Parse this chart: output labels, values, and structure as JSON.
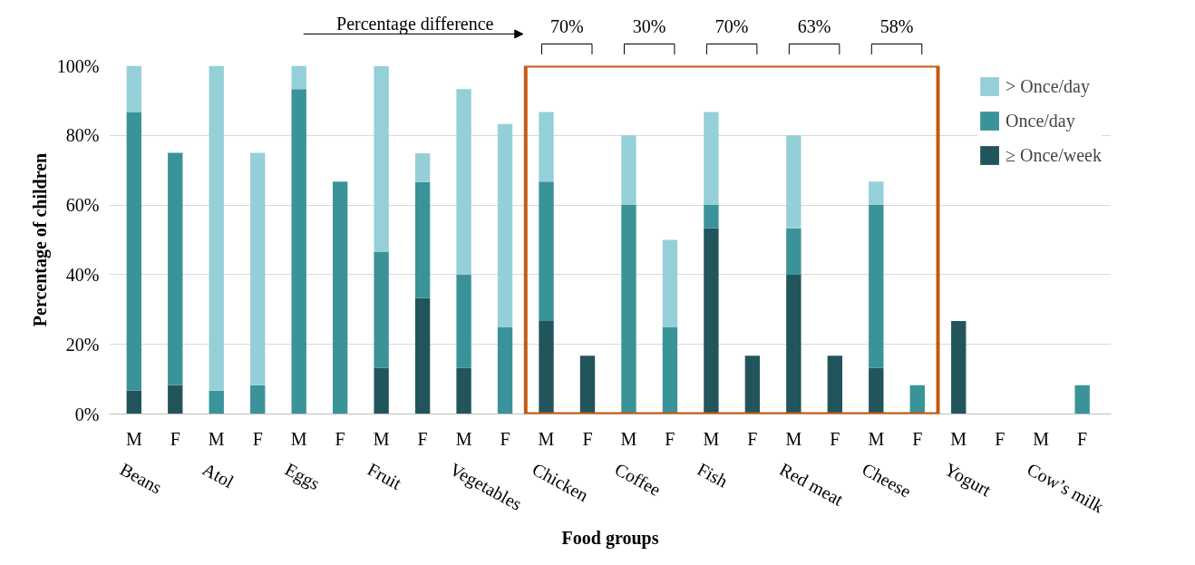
{
  "chart_data": {
    "type": "bar",
    "stacked": true,
    "xlabel": "Food groups",
    "ylabel": "Percentage of children",
    "categories": [
      "M",
      "F",
      "M",
      "F",
      "M",
      "F",
      "M",
      "F",
      "M",
      "F",
      "M",
      "F",
      "M",
      "F",
      "M",
      "F",
      "M",
      "F",
      "M",
      "F",
      "M",
      "F",
      "M",
      "F"
    ],
    "series": [
      {
        "name": "≥ Once/week",
        "color": "#22555b",
        "values": [
          6.7,
          8.3,
          0,
          0,
          0,
          0,
          13.3,
          33.3,
          13.3,
          0,
          26.7,
          16.7,
          0,
          0,
          53.3,
          16.7,
          40,
          16.7,
          13.3,
          0,
          26.7,
          0,
          0,
          0
        ]
      },
      {
        "name": "Once/day",
        "color": "#3a9399",
        "values": [
          80,
          66.7,
          6.7,
          8.3,
          93.3,
          66.7,
          33.3,
          33.3,
          26.7,
          25,
          40,
          0,
          60,
          25,
          6.7,
          0,
          13.3,
          0,
          46.7,
          8.3,
          0,
          0,
          0,
          8.3
        ]
      },
      {
        "name": "> Once/day",
        "color": "#95d0d8",
        "values": [
          13.3,
          0,
          93.3,
          66.7,
          6.7,
          0,
          53.3,
          8.3,
          53.3,
          58.3,
          20,
          0,
          20,
          25,
          26.7,
          0,
          26.7,
          0,
          6.7,
          0,
          0,
          0,
          0,
          0
        ]
      }
    ],
    "ylim": [
      0,
      100
    ],
    "yticks": [
      {
        "value": 0,
        "label": "0%"
      },
      {
        "value": 20,
        "label": "20%"
      },
      {
        "value": 40,
        "label": "40%"
      },
      {
        "value": 60,
        "label": "60%"
      },
      {
        "value": 80,
        "label": "80%"
      },
      {
        "value": 100,
        "label": "100%"
      }
    ],
    "grid": "y",
    "legend": "top right",
    "annotations": [
      "Percentage difference",
      "70%",
      "30%",
      "70%",
      "63%",
      "58%",
      "Beans",
      "Atol",
      "Eggs",
      "Fruit",
      "Vegetables",
      "Chicken",
      "Coffee",
      "Fish",
      "Red meat",
      "Cheese",
      "Yogurt",
      "Cow’s milk"
    ]
  }
}
